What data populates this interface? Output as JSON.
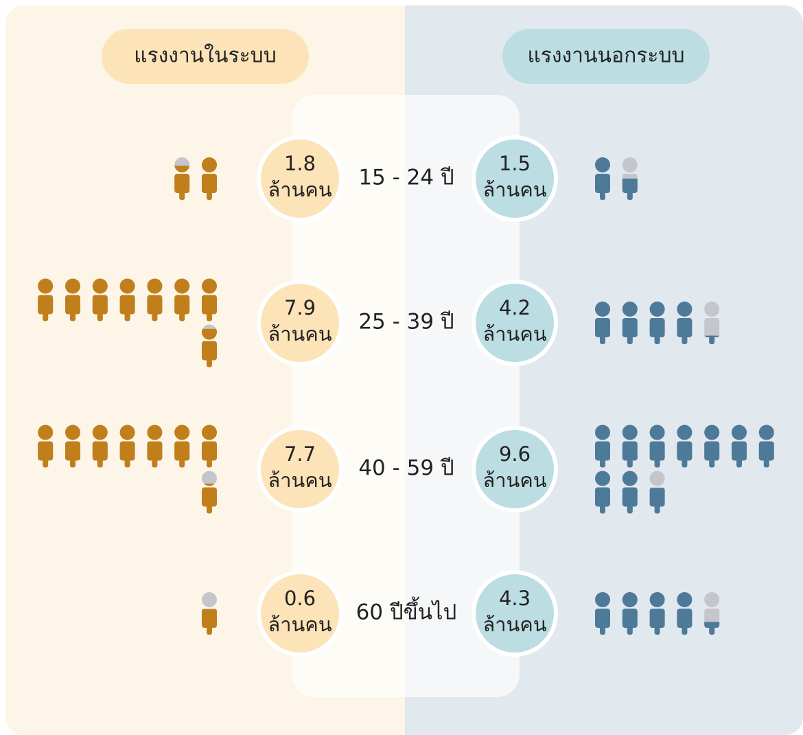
{
  "chart_data": {
    "type": "pictogram",
    "categories": [
      "15 - 24 ปี",
      "25 - 39 ปี",
      "40 - 59 ปี",
      "60 ปีขึ้นไป"
    ],
    "unit": "ล้านคน",
    "empty_color": "#c4c6cb",
    "series": [
      {
        "name": "แรงงานในระบบ",
        "color": "#c17f1c",
        "values": [
          1.8,
          7.9,
          7.7,
          0.6
        ]
      },
      {
        "name": "แรงงานนอกระบบ",
        "color": "#4e7a9a",
        "values": [
          1.5,
          4.2,
          9.6,
          4.3
        ]
      }
    ]
  }
}
